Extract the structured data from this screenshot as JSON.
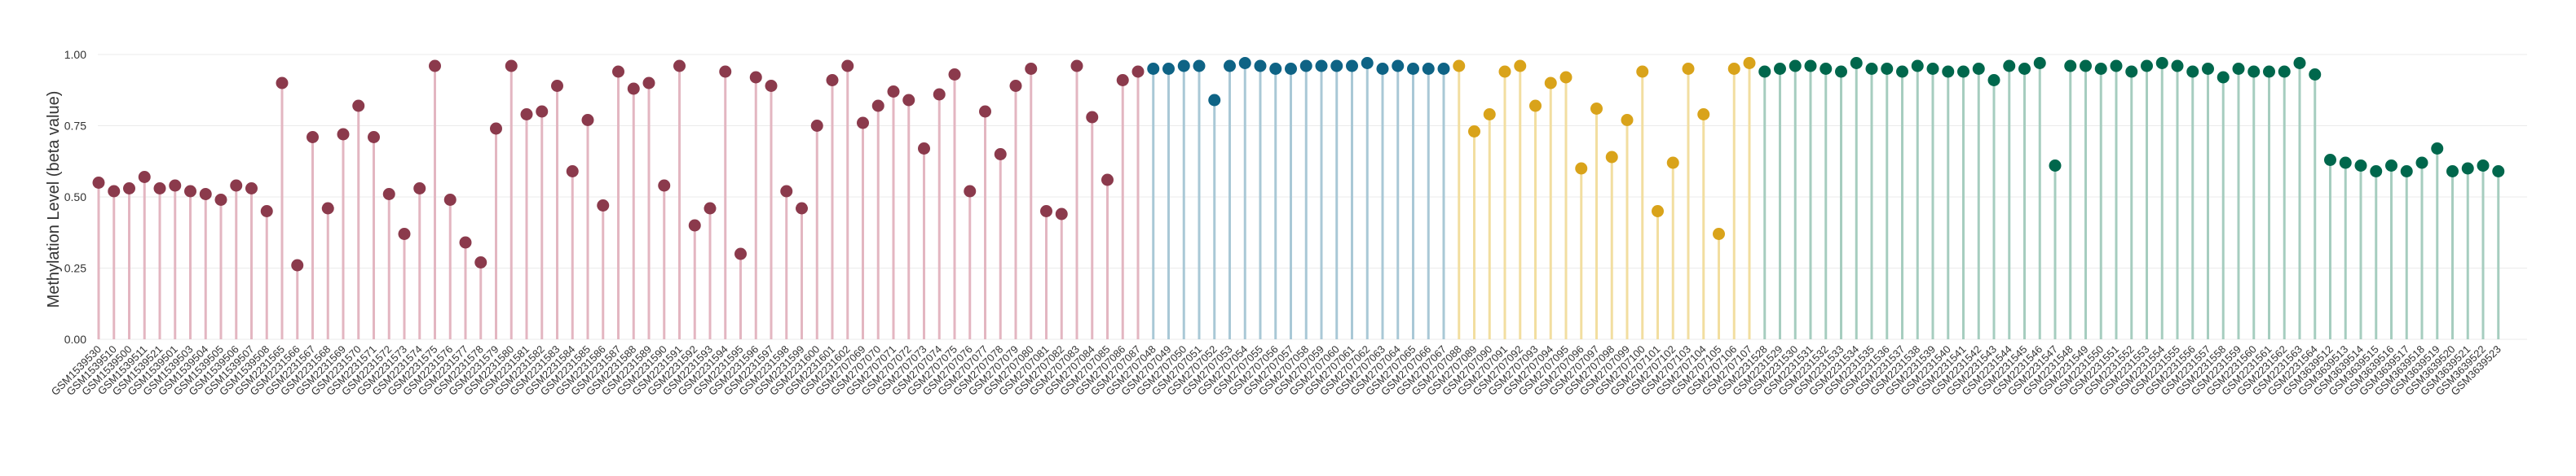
{
  "chart_data": {
    "type": "lollipop",
    "ylabel": "Methylation Level (beta value)",
    "xlabel": "",
    "ylim": [
      0,
      1
    ],
    "y_ticks": [
      "0.00",
      "0.25",
      "0.50",
      "0.75",
      "1.00"
    ],
    "grid": true,
    "legend": "none",
    "series": [
      {
        "color": "#8b3a4c",
        "stem_color": "#e3b6c1",
        "samples": [
          {
            "label": "GSM1539530",
            "value": 0.55
          },
          {
            "label": "GSM1539510",
            "value": 0.52
          },
          {
            "label": "GSM1539500",
            "value": 0.53
          },
          {
            "label": "GSM1539511",
            "value": 0.57
          },
          {
            "label": "GSM1539521",
            "value": 0.53
          },
          {
            "label": "GSM1539501",
            "value": 0.54
          },
          {
            "label": "GSM1539503",
            "value": 0.52
          },
          {
            "label": "GSM1539504",
            "value": 0.51
          },
          {
            "label": "GSM1539505",
            "value": 0.49
          },
          {
            "label": "GSM1539506",
            "value": 0.54
          },
          {
            "label": "GSM1539507",
            "value": 0.53
          },
          {
            "label": "GSM1539508",
            "value": 0.45
          },
          {
            "label": "GSM2231565",
            "value": 0.9
          },
          {
            "label": "GSM2231566",
            "value": 0.26
          },
          {
            "label": "GSM2231567",
            "value": 0.71
          },
          {
            "label": "GSM2231568",
            "value": 0.46
          },
          {
            "label": "GSM2231569",
            "value": 0.72
          },
          {
            "label": "GSM2231570",
            "value": 0.82
          },
          {
            "label": "GSM2231571",
            "value": 0.71
          },
          {
            "label": "GSM2231572",
            "value": 0.51
          },
          {
            "label": "GSM2231573",
            "value": 0.37
          },
          {
            "label": "GSM2231574",
            "value": 0.53
          },
          {
            "label": "GSM2231575",
            "value": 0.96
          },
          {
            "label": "GSM2231576",
            "value": 0.49
          },
          {
            "label": "GSM2231577",
            "value": 0.34
          },
          {
            "label": "GSM2231578",
            "value": 0.27
          },
          {
            "label": "GSM2231579",
            "value": 0.74
          },
          {
            "label": "GSM2231580",
            "value": 0.96
          },
          {
            "label": "GSM2231581",
            "value": 0.79
          },
          {
            "label": "GSM2231582",
            "value": 0.8
          },
          {
            "label": "GSM2231583",
            "value": 0.89
          },
          {
            "label": "GSM2231584",
            "value": 0.59
          },
          {
            "label": "GSM2231585",
            "value": 0.77
          },
          {
            "label": "GSM2231586",
            "value": 0.47
          },
          {
            "label": "GSM2231587",
            "value": 0.94
          },
          {
            "label": "GSM2231588",
            "value": 0.88
          },
          {
            "label": "GSM2231589",
            "value": 0.9
          },
          {
            "label": "GSM2231590",
            "value": 0.54
          },
          {
            "label": "GSM2231591",
            "value": 0.96
          },
          {
            "label": "GSM2231592",
            "value": 0.4
          },
          {
            "label": "GSM2231593",
            "value": 0.46
          },
          {
            "label": "GSM2231594",
            "value": 0.94
          },
          {
            "label": "GSM2231595",
            "value": 0.3
          },
          {
            "label": "GSM2231596",
            "value": 0.92
          },
          {
            "label": "GSM2231597",
            "value": 0.89
          },
          {
            "label": "GSM2231598",
            "value": 0.52
          },
          {
            "label": "GSM2231599",
            "value": 0.46
          },
          {
            "label": "GSM2231600",
            "value": 0.75
          },
          {
            "label": "GSM2231601",
            "value": 0.91
          },
          {
            "label": "GSM2231602",
            "value": 0.96
          },
          {
            "label": "GSM2707069",
            "value": 0.76
          },
          {
            "label": "GSM2707070",
            "value": 0.82
          },
          {
            "label": "GSM2707071",
            "value": 0.87
          },
          {
            "label": "GSM2707072",
            "value": 0.84
          },
          {
            "label": "GSM2707073",
            "value": 0.67
          },
          {
            "label": "GSM2707074",
            "value": 0.86
          },
          {
            "label": "GSM2707075",
            "value": 0.93
          },
          {
            "label": "GSM2707076",
            "value": 0.52
          },
          {
            "label": "GSM2707077",
            "value": 0.8
          },
          {
            "label": "GSM2707078",
            "value": 0.65
          },
          {
            "label": "GSM2707079",
            "value": 0.89
          },
          {
            "label": "GSM2707080",
            "value": 0.95
          },
          {
            "label": "GSM2707081",
            "value": 0.45
          },
          {
            "label": "GSM2707082",
            "value": 0.44
          },
          {
            "label": "GSM2707083",
            "value": 0.96
          },
          {
            "label": "GSM2707084",
            "value": 0.78
          },
          {
            "label": "GSM2707085",
            "value": 0.56
          },
          {
            "label": "GSM2707086",
            "value": 0.91
          },
          {
            "label": "GSM2707087",
            "value": 0.94
          }
        ]
      },
      {
        "color": "#0e6385",
        "stem_color": "#a9c8d6",
        "samples": [
          {
            "label": "GSM2707048",
            "value": 0.95
          },
          {
            "label": "GSM2707049",
            "value": 0.95
          },
          {
            "label": "GSM2707050",
            "value": 0.96
          },
          {
            "label": "GSM2707051",
            "value": 0.96
          },
          {
            "label": "GSM2707052",
            "value": 0.84
          },
          {
            "label": "GSM2707053",
            "value": 0.96
          },
          {
            "label": "GSM2707054",
            "value": 0.97
          },
          {
            "label": "GSM2707055",
            "value": 0.96
          },
          {
            "label": "GSM2707056",
            "value": 0.95
          },
          {
            "label": "GSM2707057",
            "value": 0.95
          },
          {
            "label": "GSM2707058",
            "value": 0.96
          },
          {
            "label": "GSM2707059",
            "value": 0.96
          },
          {
            "label": "GSM2707060",
            "value": 0.96
          },
          {
            "label": "GSM2707061",
            "value": 0.96
          },
          {
            "label": "GSM2707062",
            "value": 0.97
          },
          {
            "label": "GSM2707063",
            "value": 0.95
          },
          {
            "label": "GSM2707064",
            "value": 0.96
          },
          {
            "label": "GSM2707065",
            "value": 0.95
          },
          {
            "label": "GSM2707066",
            "value": 0.95
          },
          {
            "label": "GSM2707067",
            "value": 0.95
          }
        ]
      },
      {
        "color": "#d9a31a",
        "stem_color": "#f2dea0",
        "samples": [
          {
            "label": "GSM2707088",
            "value": 0.96
          },
          {
            "label": "GSM2707089",
            "value": 0.73
          },
          {
            "label": "GSM2707090",
            "value": 0.79
          },
          {
            "label": "GSM2707091",
            "value": 0.94
          },
          {
            "label": "GSM2707092",
            "value": 0.96
          },
          {
            "label": "GSM2707093",
            "value": 0.82
          },
          {
            "label": "GSM2707094",
            "value": 0.9
          },
          {
            "label": "GSM2707095",
            "value": 0.92
          },
          {
            "label": "GSM2707096",
            "value": 0.6
          },
          {
            "label": "GSM2707097",
            "value": 0.81
          },
          {
            "label": "GSM2707098",
            "value": 0.64
          },
          {
            "label": "GSM2707099",
            "value": 0.77
          },
          {
            "label": "GSM2707100",
            "value": 0.94
          },
          {
            "label": "GSM2707101",
            "value": 0.45
          },
          {
            "label": "GSM2707102",
            "value": 0.62
          },
          {
            "label": "GSM2707103",
            "value": 0.95
          },
          {
            "label": "GSM2707104",
            "value": 0.79
          },
          {
            "label": "GSM2707105",
            "value": 0.37
          },
          {
            "label": "GSM2707106",
            "value": 0.95
          },
          {
            "label": "GSM2707107",
            "value": 0.97
          }
        ]
      },
      {
        "color": "#00674c",
        "stem_color": "#a6cdbf",
        "samples": [
          {
            "label": "GSM2231528",
            "value": 0.94
          },
          {
            "label": "GSM2231529",
            "value": 0.95
          },
          {
            "label": "GSM2231530",
            "value": 0.96
          },
          {
            "label": "GSM2231531",
            "value": 0.96
          },
          {
            "label": "GSM2231532",
            "value": 0.95
          },
          {
            "label": "GSM2231533",
            "value": 0.94
          },
          {
            "label": "GSM2231534",
            "value": 0.97
          },
          {
            "label": "GSM2231535",
            "value": 0.95
          },
          {
            "label": "GSM2231536",
            "value": 0.95
          },
          {
            "label": "GSM2231537",
            "value": 0.94
          },
          {
            "label": "GSM2231538",
            "value": 0.96
          },
          {
            "label": "GSM2231539",
            "value": 0.95
          },
          {
            "label": "GSM2231540",
            "value": 0.94
          },
          {
            "label": "GSM2231541",
            "value": 0.94
          },
          {
            "label": "GSM2231542",
            "value": 0.95
          },
          {
            "label": "GSM2231543",
            "value": 0.91
          },
          {
            "label": "GSM2231544",
            "value": 0.96
          },
          {
            "label": "GSM2231545",
            "value": 0.95
          },
          {
            "label": "GSM2231546",
            "value": 0.97
          },
          {
            "label": "GSM2231547",
            "value": 0.61
          },
          {
            "label": "GSM2231548",
            "value": 0.96
          },
          {
            "label": "GSM2231549",
            "value": 0.96
          },
          {
            "label": "GSM2231550",
            "value": 0.95
          },
          {
            "label": "GSM2231551",
            "value": 0.96
          },
          {
            "label": "GSM2231552",
            "value": 0.94
          },
          {
            "label": "GSM2231553",
            "value": 0.96
          },
          {
            "label": "GSM2231554",
            "value": 0.97
          },
          {
            "label": "GSM2231555",
            "value": 0.96
          },
          {
            "label": "GSM2231556",
            "value": 0.94
          },
          {
            "label": "GSM2231557",
            "value": 0.95
          },
          {
            "label": "GSM2231558",
            "value": 0.92
          },
          {
            "label": "GSM2231559",
            "value": 0.95
          },
          {
            "label": "GSM2231560",
            "value": 0.94
          },
          {
            "label": "GSM2231561",
            "value": 0.94
          },
          {
            "label": "GSM2231562",
            "value": 0.94
          },
          {
            "label": "GSM2231563",
            "value": 0.97
          },
          {
            "label": "GSM2231564",
            "value": 0.93
          },
          {
            "label": "GSM3639512",
            "value": 0.63
          },
          {
            "label": "GSM3639513",
            "value": 0.62
          },
          {
            "label": "GSM3639514",
            "value": 0.61
          },
          {
            "label": "GSM3639515",
            "value": 0.59
          },
          {
            "label": "GSM3639516",
            "value": 0.61
          },
          {
            "label": "GSM3639517",
            "value": 0.59
          },
          {
            "label": "GSM3639518",
            "value": 0.62
          },
          {
            "label": "GSM3639519",
            "value": 0.67
          },
          {
            "label": "GSM3639520",
            "value": 0.59
          },
          {
            "label": "GSM3639521",
            "value": 0.6
          },
          {
            "label": "GSM3639522",
            "value": 0.61
          },
          {
            "label": "GSM3639523",
            "value": 0.59
          }
        ]
      }
    ]
  }
}
